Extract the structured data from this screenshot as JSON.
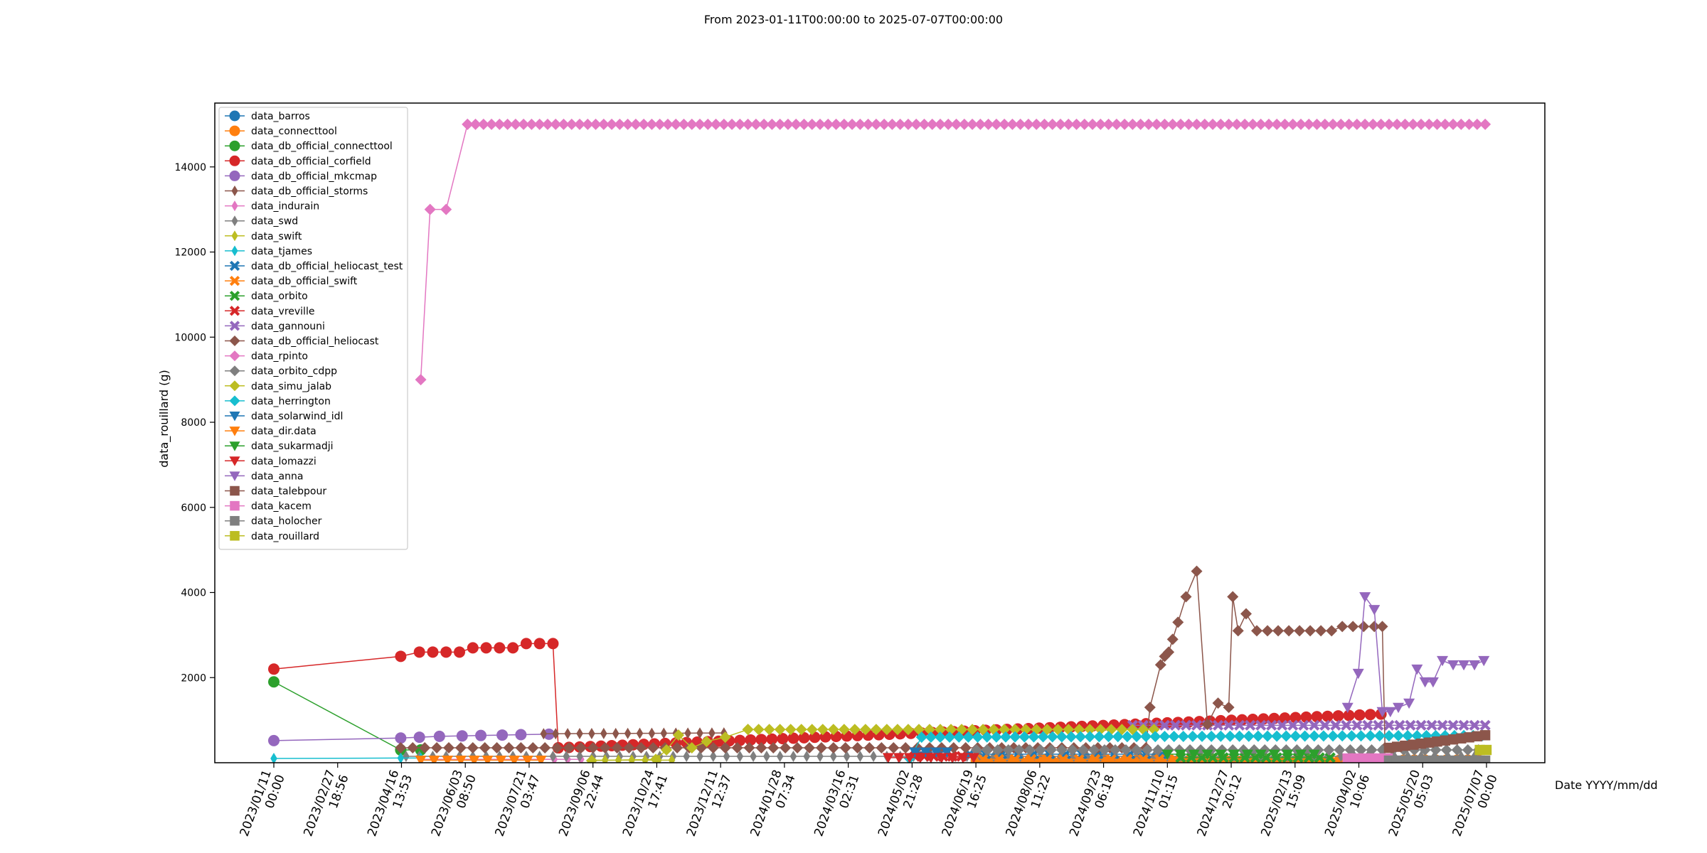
{
  "chart_data": {
    "type": "line",
    "title": "From 2023-01-11T00:00:00 to 2025-07-07T00:00:00",
    "xlabel": "Date YYYY/mm/dd",
    "ylabel": "data_rouillard (g)",
    "ylim": [
      0,
      15500
    ],
    "yticks": [
      2000,
      4000,
      6000,
      8000,
      10000,
      12000,
      14000
    ],
    "x_start": "2023-01-11T00:00",
    "x_end": "2025-07-07T00:00",
    "xticks": [
      {
        "date": "2023-01-11T00:00",
        "label": [
          "2023/01/11",
          "00:00"
        ]
      },
      {
        "date": "2023-02-27T18:56",
        "label": [
          "2023/02/27",
          "18:56"
        ]
      },
      {
        "date": "2023-04-16T13:53",
        "label": [
          "2023/04/16",
          "13:53"
        ]
      },
      {
        "date": "2023-06-03T08:50",
        "label": [
          "2023/06/03",
          "08:50"
        ]
      },
      {
        "date": "2023-07-21T03:47",
        "label": [
          "2023/07/21",
          "03:47"
        ]
      },
      {
        "date": "2023-09-06T22:44",
        "label": [
          "2023/09/06",
          "22:44"
        ]
      },
      {
        "date": "2023-10-24T17:41",
        "label": [
          "2023/10/24",
          "17:41"
        ]
      },
      {
        "date": "2023-12-11T12:37",
        "label": [
          "2023/12/11",
          "12:37"
        ]
      },
      {
        "date": "2024-01-28T07:34",
        "label": [
          "2024/01/28",
          "07:34"
        ]
      },
      {
        "date": "2024-03-16T02:31",
        "label": [
          "2024/03/16",
          "02:31"
        ]
      },
      {
        "date": "2024-05-02T21:28",
        "label": [
          "2024/05/02",
          "21:28"
        ]
      },
      {
        "date": "2024-06-19T16:25",
        "label": [
          "2024/06/19",
          "16:25"
        ]
      },
      {
        "date": "2024-08-06T11:22",
        "label": [
          "2024/08/06",
          "11:22"
        ]
      },
      {
        "date": "2024-09-23T06:18",
        "label": [
          "2024/09/23",
          "06:18"
        ]
      },
      {
        "date": "2024-11-10T01:15",
        "label": [
          "2024/11/10",
          "01:15"
        ]
      },
      {
        "date": "2024-12-27T20:12",
        "label": [
          "2024/12/27",
          "20:12"
        ]
      },
      {
        "date": "2025-02-13T15:09",
        "label": [
          "2025/02/13",
          "15:09"
        ]
      },
      {
        "date": "2025-04-02T10:06",
        "label": [
          "2025/04/02",
          "10:06"
        ]
      },
      {
        "date": "2025-05-20T05:03",
        "label": [
          "2025/05/20",
          "05:03"
        ]
      },
      {
        "date": "2025-07-07T00:00",
        "label": [
          "2025/07/07",
          "00:00"
        ]
      }
    ],
    "grid": false,
    "legend_position": "top-left",
    "series": [
      {
        "name": "data_barros",
        "color": "#1f77b4",
        "marker": "circle",
        "dense_x": [
          "2024-06-20",
          "2025-07-07",
          8
        ],
        "dense_y": [
          40
        ]
      },
      {
        "name": "data_connecttool",
        "color": "#ff7f0e",
        "marker": "circle",
        "dense_x": [
          "2024-06-20",
          "2025-07-07",
          8
        ],
        "dense_y": [
          60
        ]
      },
      {
        "name": "data_db_official_connecttool",
        "color": "#2ca02c",
        "marker": "circle",
        "x": [
          "2023-01-11",
          "2023-04-16",
          "2023-05-01"
        ],
        "y": [
          1900,
          300,
          300
        ]
      },
      {
        "name": "data_db_official_corfield",
        "color": "#d62728",
        "marker": "circle",
        "x": [
          "2023-01-11",
          "2023-04-16",
          "2023-04-30",
          "2023-05-10",
          "2023-05-20",
          "2023-05-30",
          "2023-06-09",
          "2023-06-19",
          "2023-06-29",
          "2023-07-09",
          "2023-07-19",
          "2023-07-29",
          "2023-08-08",
          "2023-08-12"
        ],
        "y": [
          2200,
          2500,
          2600,
          2600,
          2600,
          2600,
          2700,
          2700,
          2700,
          2700,
          2800,
          2800,
          2800,
          350
        ],
        "dense_x": [
          "2023-08-12",
          "2025-04-25",
          8
        ],
        "dense_y": [
          350,
          1150
        ]
      },
      {
        "name": "data_db_official_mkcmap",
        "color": "#9467bd",
        "marker": "circle",
        "x": [
          "2023-01-11",
          "2023-04-16",
          "2023-04-30",
          "2023-05-15",
          "2023-06-01",
          "2023-06-15",
          "2023-07-01",
          "2023-07-15",
          "2023-08-05"
        ],
        "y": [
          520,
          580,
          600,
          620,
          630,
          640,
          650,
          660,
          670
        ]
      },
      {
        "name": "data_db_official_storms",
        "color": "#8c564b",
        "marker": "thin_diamond",
        "dense_x": [
          "2023-08-01",
          "2023-12-20",
          9
        ],
        "dense_y": [
          680,
          700
        ]
      },
      {
        "name": "data_indurain",
        "color": "#e377c2",
        "marker": "thin_diamond",
        "dense_x": [
          "2023-05-01",
          "2023-09-01",
          10
        ],
        "dense_y": [
          80
        ]
      },
      {
        "name": "data_swd",
        "color": "#7f7f7f",
        "marker": "thin_diamond",
        "dense_x": [
          "2023-04-20",
          "2025-07-07",
          10
        ],
        "dense_y": [
          150
        ]
      },
      {
        "name": "data_swift",
        "color": "#bcbd22",
        "marker": "thin_diamond",
        "dense_x": [
          "2023-09-06",
          "2023-11-05",
          10
        ],
        "dense_y": [
          60
        ]
      },
      {
        "name": "data_tjames",
        "color": "#17becf",
        "marker": "thin_diamond",
        "x": [
          "2023-01-11",
          "2023-04-16",
          "2023-05-01"
        ],
        "y": [
          100,
          110,
          110
        ]
      },
      {
        "name": "data_db_official_heliocast_test",
        "color": "#1f77b4",
        "marker": "x",
        "dense_x": [
          "2024-06-15",
          "2024-11-10",
          12
        ],
        "dense_y": [
          200
        ]
      },
      {
        "name": "data_db_official_swift",
        "color": "#ff7f0e",
        "marker": "x",
        "dense_x": [
          "2024-06-25",
          "2025-01-10",
          12
        ],
        "dense_y": [
          80
        ]
      },
      {
        "name": "data_orbito",
        "color": "#2ca02c",
        "marker": "x",
        "dense_x": [
          "2024-11-20",
          "2025-03-15",
          8
        ],
        "dense_y": [
          120
        ]
      },
      {
        "name": "data_vreville",
        "color": "#d62728",
        "marker": "x",
        "dense_x": [
          "2024-05-05",
          "2024-06-15",
          7
        ],
        "dense_y": [
          150
        ]
      },
      {
        "name": "data_gannouni",
        "color": "#9467bd",
        "marker": "x",
        "dense_x": [
          "2024-10-15",
          "2025-07-07",
          8
        ],
        "dense_y": [
          880
        ]
      },
      {
        "name": "data_db_official_heliocast",
        "color": "#8c564b",
        "marker": "diamond",
        "x": [
          "2024-10-28",
          "2024-11-05",
          "2024-11-08",
          "2024-11-11",
          "2024-11-14",
          "2024-11-18",
          "2024-11-24",
          "2024-12-02",
          "2024-12-10",
          "2024-12-18",
          "2024-12-26",
          "2024-12-29",
          "2025-01-02",
          "2025-01-08",
          "2025-01-16",
          "2025-01-24",
          "2025-02-01",
          "2025-02-09",
          "2025-02-17",
          "2025-02-25",
          "2025-03-05",
          "2025-03-13",
          "2025-03-21",
          "2025-03-29",
          "2025-04-06",
          "2025-04-14",
          "2025-04-20",
          "2025-04-22"
        ],
        "y": [
          1300,
          2300,
          2500,
          2600,
          2900,
          3300,
          3900,
          4500,
          900,
          1400,
          1300,
          3900,
          3100,
          3500,
          3100,
          3100,
          3100,
          3100,
          3100,
          3100,
          3100,
          3100,
          3200,
          3200,
          3200,
          3200,
          3200,
          350
        ],
        "dense_x": [
          "2023-04-16",
          "2024-10-25",
          9
        ],
        "dense_y": [
          350
        ]
      },
      {
        "name": "data_rpinto",
        "color": "#e377c2",
        "marker": "diamond",
        "x": [
          "2023-05-01",
          "2023-05-08",
          "2023-05-20",
          "2023-06-05"
        ],
        "y": [
          9000,
          13000,
          13000,
          15000
        ],
        "dense_x": [
          "2023-06-05",
          "2025-07-07",
          6
        ],
        "dense_y": [
          15000
        ]
      },
      {
        "name": "data_orbito_cdpp",
        "color": "#7f7f7f",
        "marker": "diamond",
        "dense_x": [
          "2024-06-20",
          "2025-07-07",
          8
        ],
        "dense_y": [
          300
        ]
      },
      {
        "name": "data_simu_jalab",
        "color": "#bcbd22",
        "marker": "diamond",
        "x": [
          "2023-09-06",
          "2023-10-24",
          "2023-11-01",
          "2023-11-10",
          "2023-11-20",
          "2023-12-01",
          "2023-12-15",
          "2024-01-01"
        ],
        "y": [
          50,
          80,
          300,
          650,
          350,
          500,
          600,
          780
        ],
        "dense_x": [
          "2024-01-01",
          "2024-11-05",
          8
        ],
        "dense_y": [
          780,
          780
        ]
      },
      {
        "name": "data_herrington",
        "color": "#17becf",
        "marker": "diamond",
        "x": [
          "2024-05-01"
        ],
        "y": [
          100
        ],
        "dense_x": [
          "2024-05-10",
          "2025-07-07",
          7
        ],
        "dense_y": [
          600,
          640
        ]
      },
      {
        "name": "data_solarwind_idl",
        "color": "#1f77b4",
        "marker": "triangle_down",
        "dense_x": [
          "2024-05-05",
          "2024-06-05",
          8
        ],
        "dense_y": [
          250
        ]
      },
      {
        "name": "data_dir.data",
        "color": "#ff7f0e",
        "marker": "triangle_down",
        "dense_x": [
          "2023-05-01",
          "2023-08-01",
          10
        ],
        "dense_y": [
          60
        ]
      },
      {
        "name": "data_sukarmadji",
        "color": "#2ca02c",
        "marker": "triangle_down",
        "dense_x": [
          "2024-11-10",
          "2025-03-01",
          10
        ],
        "dense_y": [
          200
        ]
      },
      {
        "name": "data_lomazzi",
        "color": "#d62728",
        "marker": "triangle_down",
        "dense_x": [
          "2024-04-15",
          "2024-06-25",
          8
        ],
        "dense_y": [
          120
        ]
      },
      {
        "name": "data_anna",
        "color": "#9467bd",
        "marker": "triangle_down",
        "x": [
          "2025-03-25",
          "2025-04-02",
          "2025-04-07",
          "2025-04-14",
          "2025-04-20",
          "2025-04-26",
          "2025-05-02",
          "2025-05-10",
          "2025-05-16",
          "2025-05-22",
          "2025-05-28",
          "2025-06-04",
          "2025-06-12",
          "2025-06-20",
          "2025-06-28",
          "2025-07-05"
        ],
        "y": [
          1300,
          2100,
          3900,
          3600,
          1200,
          1200,
          1300,
          1400,
          2200,
          1900,
          1900,
          2400,
          2300,
          2300,
          2300,
          2400
        ]
      },
      {
        "name": "data_talebpour",
        "color": "#8c564b",
        "marker": "square",
        "dense_x": [
          "2025-04-25",
          "2025-07-07",
          6
        ],
        "dense_y": [
          350,
          650
        ]
      },
      {
        "name": "data_kacem",
        "color": "#e377c2",
        "marker": "square",
        "dense_x": [
          "2025-03-25",
          "2025-04-25",
          6
        ],
        "dense_y": [
          100
        ]
      },
      {
        "name": "data_holocher",
        "color": "#7f7f7f",
        "marker": "square",
        "dense_x": [
          "2025-04-25",
          "2025-07-07",
          6
        ],
        "dense_y": [
          50
        ]
      },
      {
        "name": "data_rouillard",
        "color": "#bcbd22",
        "marker": "square",
        "x": [
          "2025-07-02",
          "2025-07-07"
        ],
        "y": [
          300,
          300
        ]
      }
    ]
  }
}
